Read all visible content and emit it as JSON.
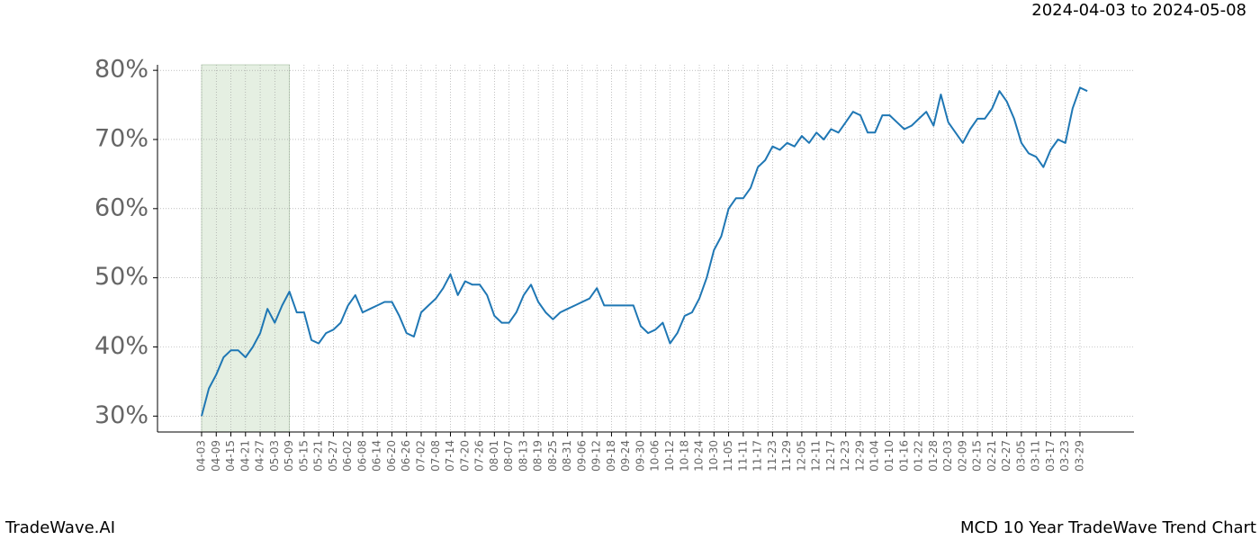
{
  "chart_data": {
    "type": "line",
    "title": "2024-04-03 to 2024-05-08",
    "footer_left": "TradeWave.AI",
    "footer_right": "MCD 10 Year TradeWave Trend Chart",
    "categories": [
      "04-03",
      null,
      "04-09",
      null,
      "04-15",
      null,
      "04-21",
      null,
      "04-27",
      null,
      "05-03",
      null,
      "05-09",
      null,
      "05-15",
      null,
      "05-21",
      null,
      "05-27",
      null,
      "06-02",
      null,
      "06-08",
      null,
      "06-14",
      null,
      "06-20",
      null,
      "06-26",
      null,
      "07-02",
      null,
      "07-08",
      null,
      "07-14",
      null,
      "07-20",
      null,
      "07-26",
      null,
      "08-01",
      null,
      "08-07",
      null,
      "08-13",
      null,
      "08-19",
      null,
      "08-25",
      null,
      "08-31",
      null,
      "09-06",
      null,
      "09-12",
      null,
      "09-18",
      null,
      "09-24",
      null,
      "09-30",
      null,
      "10-06",
      null,
      "10-12",
      null,
      "10-18",
      null,
      "10-24",
      null,
      "10-30",
      null,
      "11-05",
      null,
      "11-11",
      null,
      "11-17",
      null,
      "11-23",
      null,
      "11-29",
      null,
      "12-05",
      null,
      "12-11",
      null,
      "12-17",
      null,
      "12-23",
      null,
      "12-29",
      null,
      "01-04",
      null,
      "01-10",
      null,
      "01-16",
      null,
      "01-22",
      null,
      "01-28",
      null,
      "02-03",
      null,
      "02-09",
      null,
      "02-15",
      null,
      "02-21",
      null,
      "02-27",
      null,
      "03-05",
      null,
      "03-11",
      null,
      "03-17",
      null,
      "03-23",
      null,
      "03-29",
      null
    ],
    "series": [
      {
        "color": "#1f77b4",
        "values": [
          30,
          34,
          36,
          38.5,
          39.5,
          39.5,
          38.5,
          40,
          42,
          45.5,
          43.5,
          46,
          48,
          45,
          45,
          41,
          40.5,
          42,
          42.5,
          43.5,
          46,
          47.5,
          45,
          45.5,
          46,
          46.5,
          46.5,
          44.5,
          42,
          41.5,
          45,
          46,
          47,
          48.5,
          50.5,
          47.5,
          49.5,
          49,
          49,
          47.5,
          44.5,
          43.5,
          43.5,
          45,
          47.5,
          49,
          46.5,
          45,
          44,
          45,
          45.5,
          46,
          46.5,
          47,
          48.5,
          46,
          46,
          46,
          46,
          46,
          43,
          42,
          42.5,
          43.5,
          40.5,
          42,
          44.5,
          45,
          47,
          50,
          54,
          56,
          60,
          61.5,
          61.5,
          63,
          66,
          67,
          69,
          68.5,
          69.5,
          69,
          70.5,
          69.5,
          71,
          70,
          71.5,
          71,
          72.5,
          74,
          73.5,
          71,
          71,
          73.5,
          73.5,
          72.5,
          71.5,
          72,
          73,
          74,
          72,
          76.5,
          72.5,
          71,
          69.5,
          71.5,
          73,
          73,
          74.5,
          77,
          75.5,
          73,
          69.5,
          68,
          67.5,
          66,
          68.5,
          70,
          69.5,
          74.5,
          77.5,
          77
        ]
      }
    ],
    "shaded_span": {
      "start": 0,
      "end": 12,
      "color": "#e5efe2"
    },
    "ylim": [
      27.7,
      80.8
    ],
    "yticks": [
      {
        "value": 30,
        "label": "30%"
      },
      {
        "value": 40,
        "label": "40%"
      },
      {
        "value": 50,
        "label": "50%"
      },
      {
        "value": 60,
        "label": "60%"
      },
      {
        "value": 70,
        "label": "70%"
      },
      {
        "value": 80,
        "label": "80%"
      }
    ],
    "grid": true
  }
}
